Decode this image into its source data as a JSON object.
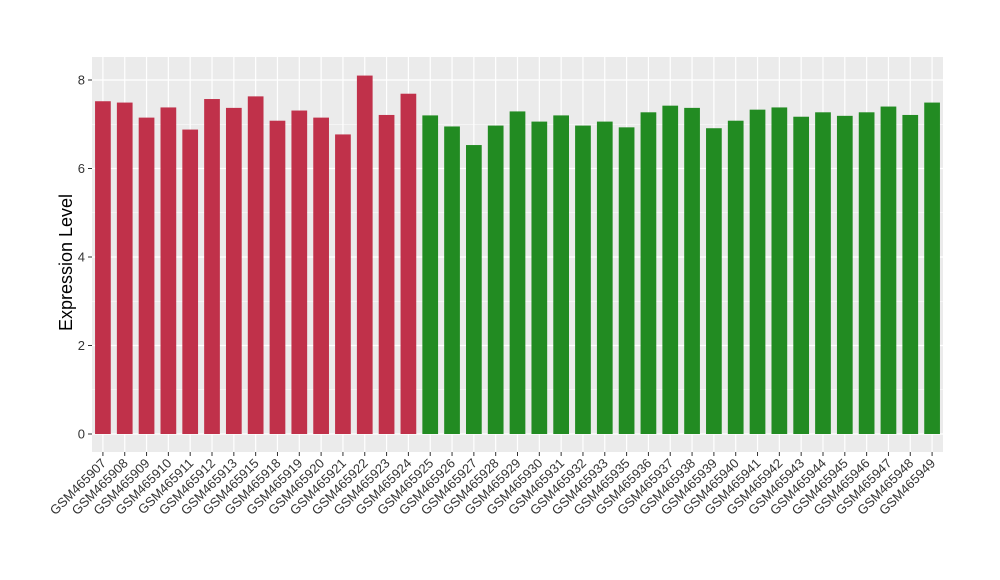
{
  "chart_data": {
    "type": "bar",
    "title": "",
    "xlabel": "",
    "ylabel": "Expression Level",
    "ylim": [
      0,
      8.5
    ],
    "yticks": [
      0,
      2,
      4,
      6,
      8
    ],
    "grid": true,
    "legend": "none",
    "colors": {
      "group_a": "#C0314A",
      "group_b": "#228B22",
      "panel": "#EBEBEB",
      "grid": "#FFFFFF"
    },
    "categories": [
      "GSM465907",
      "GSM465908",
      "GSM465909",
      "GSM465910",
      "GSM465911",
      "GSM465912",
      "GSM465913",
      "GSM465915",
      "GSM465918",
      "GSM465919",
      "GSM465920",
      "GSM465921",
      "GSM465922",
      "GSM465923",
      "GSM465924",
      "GSM465925",
      "GSM465926",
      "GSM465927",
      "GSM465928",
      "GSM465929",
      "GSM465930",
      "GSM465931",
      "GSM465932",
      "GSM465933",
      "GSM465935",
      "GSM465936",
      "GSM465937",
      "GSM465938",
      "GSM465939",
      "GSM465940",
      "GSM465941",
      "GSM465942",
      "GSM465943",
      "GSM465944",
      "GSM465945",
      "GSM465946",
      "GSM465947",
      "GSM465948",
      "GSM465949"
    ],
    "values": [
      7.52,
      7.49,
      7.15,
      7.38,
      6.88,
      7.57,
      7.37,
      7.63,
      7.08,
      7.31,
      7.15,
      6.77,
      8.1,
      7.21,
      7.69,
      7.2,
      6.95,
      6.53,
      6.97,
      7.29,
      7.06,
      7.2,
      6.97,
      7.06,
      6.93,
      7.27,
      7.42,
      7.37,
      6.91,
      7.08,
      7.33,
      7.38,
      7.17,
      7.27,
      7.19,
      7.27,
      7.4,
      7.21,
      7.49
    ],
    "groups": [
      "a",
      "a",
      "a",
      "a",
      "a",
      "a",
      "a",
      "a",
      "a",
      "a",
      "a",
      "a",
      "a",
      "a",
      "a",
      "b",
      "b",
      "b",
      "b",
      "b",
      "b",
      "b",
      "b",
      "b",
      "b",
      "b",
      "b",
      "b",
      "b",
      "b",
      "b",
      "b",
      "b",
      "b",
      "b",
      "b",
      "b",
      "b",
      "b"
    ]
  }
}
